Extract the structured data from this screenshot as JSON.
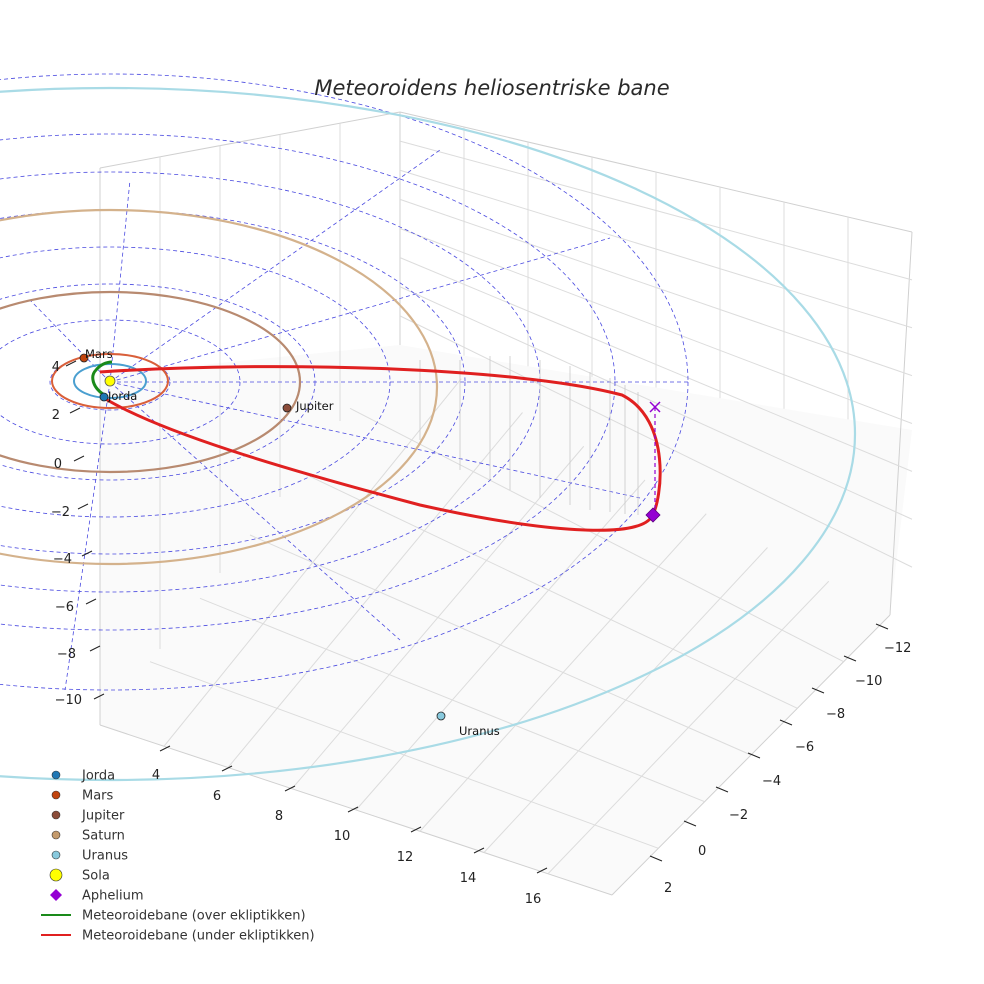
{
  "chart_data": {
    "type": "3d-scatter-line",
    "title": "Meteoroidens heliosentriske bane",
    "axes": {
      "x": {
        "ticks": [
          "4",
          "6",
          "8",
          "10",
          "12",
          "14",
          "16"
        ]
      },
      "y": {
        "ticks": [
          "−12",
          "−10",
          "−8",
          "−6",
          "−4",
          "−2",
          "0",
          "2"
        ]
      },
      "z": {
        "ticks": [
          "4",
          "2",
          "0",
          "−2",
          "−4",
          "−6",
          "−8",
          "−10"
        ]
      }
    },
    "planets": [
      {
        "name": "Jorda",
        "label": "Jorda",
        "color": "#1f77b4"
      },
      {
        "name": "Mars",
        "label": "Mars",
        "color": "#c1440e"
      },
      {
        "name": "Jupiter",
        "label": "Jupiter",
        "color": "#8b4c39"
      },
      {
        "name": "Saturn",
        "label": "",
        "color": "#c49a6c"
      },
      {
        "name": "Uranus",
        "label": "Uranus",
        "color": "#88c9dd"
      }
    ],
    "sun": {
      "name": "Sola",
      "color": "#ffff00"
    },
    "aphelium": {
      "name": "Aphelium",
      "color": "#9400d3"
    },
    "orbit_above": {
      "name": "Meteoroidebane (over ekliptikken)",
      "color": "#1a8a1a"
    },
    "orbit_below": {
      "name": "Meteoroidebane (under ekliptikken)",
      "color": "#e02020"
    },
    "legend": [
      {
        "label": "Jorda",
        "kind": "dot",
        "color": "#1f77b4"
      },
      {
        "label": "Mars",
        "kind": "dot",
        "color": "#c1440e"
      },
      {
        "label": "Jupiter",
        "kind": "dot",
        "color": "#8b4c39"
      },
      {
        "label": "Saturn",
        "kind": "dot",
        "color": "#c49a6c"
      },
      {
        "label": "Uranus",
        "kind": "dot",
        "color": "#88c9dd"
      },
      {
        "label": "Sola",
        "kind": "bigdot",
        "color": "#ffff00"
      },
      {
        "label": "Aphelium",
        "kind": "diamond",
        "color": "#9400d3"
      },
      {
        "label": "Meteoroidebane (over ekliptikken)",
        "kind": "line",
        "color": "#1a8a1a"
      },
      {
        "label": "Meteoroidebane (under ekliptikken)",
        "kind": "line",
        "color": "#e02020"
      }
    ]
  }
}
